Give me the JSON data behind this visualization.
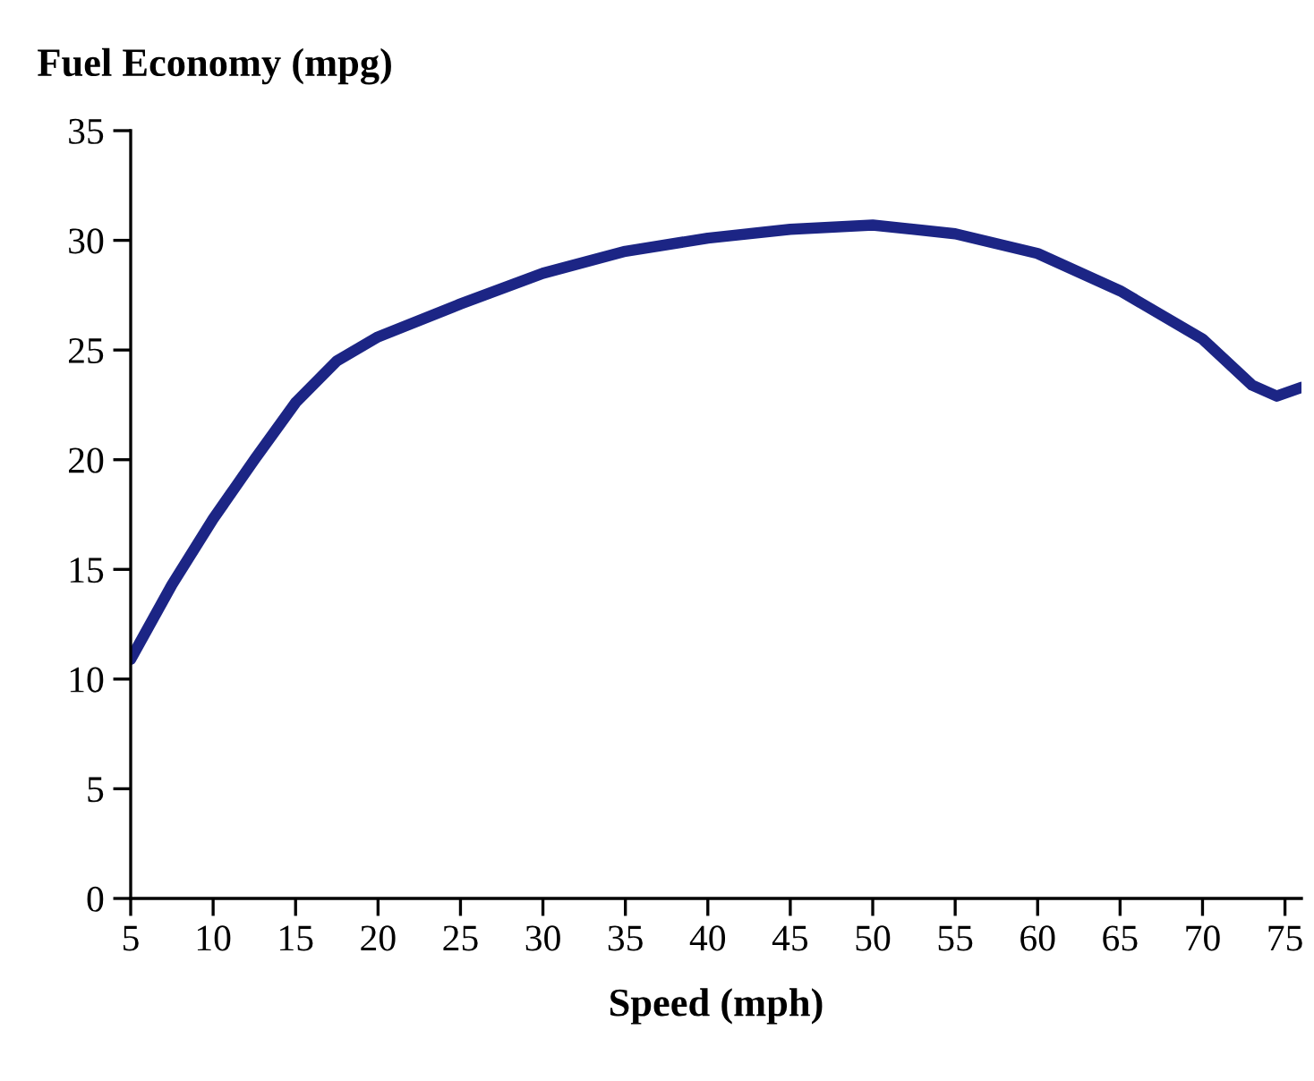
{
  "chart_data": {
    "type": "line",
    "xlabel": "Speed (mph)",
    "ylabel": "Fuel Economy (mpg)",
    "x": [
      5,
      7.5,
      10,
      12.5,
      15,
      17.5,
      20,
      25,
      30,
      35,
      40,
      45,
      50,
      55,
      60,
      65,
      70,
      73,
      74.5,
      76
    ],
    "series": [
      {
        "color": "#1c2585",
        "values": [
          10.9,
          14.3,
          17.3,
          20.0,
          22.6,
          24.5,
          25.6,
          27.1,
          28.5,
          29.5,
          30.1,
          30.5,
          30.7,
          30.3,
          29.4,
          27.7,
          25.5,
          23.4,
          22.9,
          23.3
        ]
      }
    ],
    "xlim": [
      5,
      76
    ],
    "ylim": [
      0,
      35
    ],
    "xticks": [
      5,
      10,
      15,
      20,
      25,
      30,
      35,
      40,
      45,
      50,
      55,
      60,
      65,
      70,
      75
    ],
    "yticks": [
      0,
      5,
      10,
      15,
      20,
      25,
      30,
      35
    ],
    "grid": false,
    "legend": false,
    "marker": "none",
    "line_style": "solid"
  }
}
